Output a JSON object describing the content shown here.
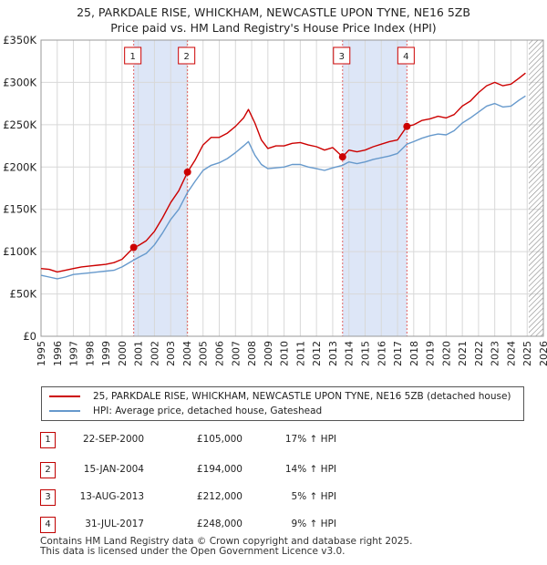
{
  "title_line1": "25, PARKDALE RISE, WHICKHAM, NEWCASTLE UPON TYNE, NE16 5ZB",
  "title_line2": "Price paid vs. HM Land Registry's House Price Index (HPI)",
  "colors": {
    "property": "#cc0000",
    "hpi": "#6699cc",
    "shade": "#dde6f7",
    "grid": "#d8d8d8",
    "hatch": "#888888"
  },
  "chart_data": {
    "type": "line",
    "title": "Price paid vs. HM Land Registry's House Price Index (HPI)",
    "xlabel": "",
    "ylabel": "",
    "xlim": [
      1995,
      2026
    ],
    "ylim": [
      0,
      350000
    ],
    "y_ticks": [
      0,
      50000,
      100000,
      150000,
      200000,
      250000,
      300000,
      350000
    ],
    "y_tick_labels": [
      "£0",
      "£50K",
      "£100K",
      "£150K",
      "£200K",
      "£250K",
      "£300K",
      "£350K"
    ],
    "x_ticks": [
      1995,
      1996,
      1997,
      1998,
      1999,
      2000,
      2001,
      2002,
      2003,
      2004,
      2005,
      2006,
      2007,
      2008,
      2009,
      2010,
      2011,
      2012,
      2013,
      2014,
      2015,
      2016,
      2017,
      2018,
      2019,
      2020,
      2021,
      2022,
      2023,
      2024,
      2025,
      2026
    ],
    "x_tick_labels": [
      "1995",
      "1996",
      "1997",
      "1998",
      "1999",
      "2000",
      "2001",
      "2002",
      "2003",
      "2004",
      "2005",
      "2006",
      "2007",
      "2008",
      "2009",
      "2010",
      "2011",
      "2012",
      "2013",
      "2014",
      "2015",
      "2016",
      "2017",
      "2018",
      "2019",
      "2020",
      "2021",
      "2022",
      "2023",
      "2024",
      "2025",
      "2026"
    ],
    "shaded_periods": [
      [
        2000.72,
        2004.04
      ],
      [
        2013.61,
        2017.58
      ]
    ],
    "forecast_start": 2025.1,
    "series": [
      {
        "name": "25, PARKDALE RISE, WHICKHAM, NEWCASTLE UPON TYNE, NE16 5ZB (detached house)",
        "x": [
          1995.0,
          1995.5,
          1996.0,
          1996.5,
          1997.0,
          1997.5,
          1998.0,
          1998.5,
          1999.0,
          1999.5,
          2000.0,
          2000.72,
          2001.0,
          2001.5,
          2002.0,
          2002.5,
          2003.0,
          2003.5,
          2004.04,
          2004.5,
          2005.0,
          2005.5,
          2006.0,
          2006.5,
          2007.0,
          2007.5,
          2007.8,
          2008.2,
          2008.6,
          2009.0,
          2009.5,
          2010.0,
          2010.5,
          2011.0,
          2011.5,
          2012.0,
          2012.5,
          2013.0,
          2013.61,
          2014.0,
          2014.5,
          2015.0,
          2015.5,
          2016.0,
          2016.5,
          2017.0,
          2017.58,
          2018.0,
          2018.5,
          2019.0,
          2019.5,
          2020.0,
          2020.5,
          2021.0,
          2021.5,
          2022.0,
          2022.5,
          2023.0,
          2023.5,
          2024.0,
          2024.5,
          2024.9
        ],
        "values": [
          80000,
          79000,
          76000,
          78000,
          80000,
          82000,
          83000,
          84000,
          85000,
          87000,
          91000,
          105000,
          107000,
          113000,
          124000,
          140000,
          158000,
          172000,
          194000,
          208000,
          226000,
          235000,
          235000,
          240000,
          248000,
          258000,
          268000,
          252000,
          232000,
          222000,
          225000,
          225000,
          228000,
          229000,
          226000,
          224000,
          220000,
          223000,
          212000,
          220000,
          218000,
          220000,
          224000,
          227000,
          230000,
          232000,
          248000,
          250000,
          255000,
          257000,
          260000,
          258000,
          262000,
          272000,
          278000,
          288000,
          296000,
          300000,
          296000,
          298000,
          305000,
          311000
        ]
      },
      {
        "name": "HPI: Average price, detached house, Gateshead",
        "x": [
          1995.0,
          1995.5,
          1996.0,
          1996.5,
          1997.0,
          1997.5,
          1998.0,
          1998.5,
          1999.0,
          1999.5,
          2000.0,
          2000.72,
          2001.0,
          2001.5,
          2002.0,
          2002.5,
          2003.0,
          2003.5,
          2004.04,
          2004.5,
          2005.0,
          2005.5,
          2006.0,
          2006.5,
          2007.0,
          2007.5,
          2007.8,
          2008.2,
          2008.6,
          2009.0,
          2009.5,
          2010.0,
          2010.5,
          2011.0,
          2011.5,
          2012.0,
          2012.5,
          2013.0,
          2013.61,
          2014.0,
          2014.5,
          2015.0,
          2015.5,
          2016.0,
          2016.5,
          2017.0,
          2017.58,
          2018.0,
          2018.5,
          2019.0,
          2019.5,
          2020.0,
          2020.5,
          2021.0,
          2021.5,
          2022.0,
          2022.5,
          2023.0,
          2023.5,
          2024.0,
          2024.5,
          2024.9
        ],
        "values": [
          72000,
          70000,
          68000,
          70000,
          73000,
          74000,
          75000,
          76000,
          77000,
          78000,
          82000,
          90000,
          93000,
          98000,
          108000,
          122000,
          138000,
          150000,
          170000,
          183000,
          196000,
          202000,
          205000,
          210000,
          217000,
          225000,
          230000,
          214000,
          203000,
          198000,
          199000,
          200000,
          203000,
          203000,
          200000,
          198000,
          196000,
          199000,
          202000,
          206000,
          204000,
          206000,
          209000,
          211000,
          213000,
          216000,
          227000,
          230000,
          234000,
          237000,
          239000,
          238000,
          243000,
          252000,
          258000,
          265000,
          272000,
          275000,
          271000,
          272000,
          279000,
          284000
        ]
      }
    ],
    "sales": [
      {
        "num": "1",
        "x": 2000.72,
        "value": 105000
      },
      {
        "num": "2",
        "x": 2004.04,
        "value": 194000
      },
      {
        "num": "3",
        "x": 2013.61,
        "value": 212000
      },
      {
        "num": "4",
        "x": 2017.58,
        "value": 248000
      }
    ]
  },
  "legend": {
    "property": "25, PARKDALE RISE, WHICKHAM, NEWCASTLE UPON TYNE, NE16 5ZB (detached house)",
    "hpi": "HPI: Average price, detached house, Gateshead"
  },
  "transactions": [
    {
      "num": "1",
      "date": "22-SEP-2000",
      "price": "£105,000",
      "hpi": "17% ↑ HPI"
    },
    {
      "num": "2",
      "date": "15-JAN-2004",
      "price": "£194,000",
      "hpi": "14% ↑ HPI"
    },
    {
      "num": "3",
      "date": "13-AUG-2013",
      "price": "£212,000",
      "hpi": "5% ↑ HPI"
    },
    {
      "num": "4",
      "date": "31-JUL-2017",
      "price": "£248,000",
      "hpi": "9% ↑ HPI"
    }
  ],
  "footer": {
    "line1": "Contains HM Land Registry data © Crown copyright and database right 2025.",
    "line2": "This data is licensed under the Open Government Licence v3.0."
  }
}
